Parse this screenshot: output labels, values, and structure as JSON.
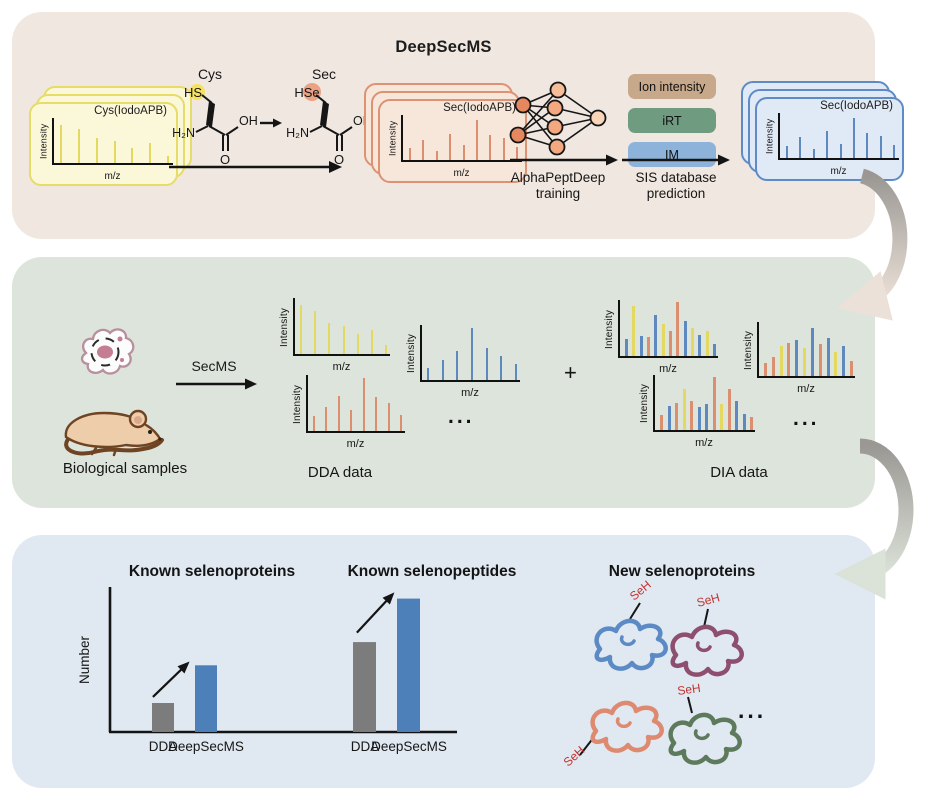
{
  "labels": {
    "intensity": "Intensity",
    "mz": "m/z",
    "seh": "SeH",
    "ellipsis": "...",
    "plus": "+"
  },
  "colors": {
    "bars": {
      "y": "#e3d960",
      "s": "#dc8f6e",
      "b": "#5d88c0"
    },
    "panel1": "#efe7e0",
    "panel2": "#dde4db",
    "panel3": "#e0e8f1",
    "pill_ion": "#c7a88b",
    "pill_irt": "#6f9c81",
    "pill_im": "#8db3da",
    "dda_bar": "#7c7c7c",
    "deepsecms_bar": "#4d80b8",
    "seh_red": "#bf3430"
  },
  "top_panel": {
    "title": "DeepSecMS",
    "card_yellow": {
      "title": "Cys(IodoAPB)",
      "w": 2,
      "bars": [
        [
          "y",
          0.85
        ],
        [
          "y",
          0.76
        ],
        [
          "y",
          0.55
        ],
        [
          "y",
          0.5
        ],
        [
          "y",
          0.34
        ],
        [
          "y",
          0.44
        ],
        [
          "y",
          0.16
        ]
      ]
    },
    "card_salmon": {
      "title": "Sec(IodoAPB)",
      "w": 2,
      "bars": [
        [
          "s",
          0.26
        ],
        [
          "s",
          0.44
        ],
        [
          "s",
          0.2
        ],
        [
          "s",
          0.58
        ],
        [
          "s",
          0.34
        ],
        [
          "s",
          0.9
        ],
        [
          "s",
          0.56
        ],
        [
          "s",
          0.5
        ],
        [
          "s",
          0.3
        ]
      ]
    },
    "card_blue": {
      "title": "Sec(IodoAPB)",
      "w": 2,
      "bars": [
        [
          "b",
          0.26
        ],
        [
          "b",
          0.46
        ],
        [
          "b",
          0.2
        ],
        [
          "b",
          0.6
        ],
        [
          "b",
          0.32
        ],
        [
          "b",
          0.9
        ],
        [
          "b",
          0.56
        ],
        [
          "b",
          0.5
        ],
        [
          "b",
          0.3
        ]
      ]
    },
    "chem": {
      "cys_name": "Cys",
      "sec_name": "Sec",
      "cys_group": "HS",
      "sec_group": "HSe",
      "amine": "H₂N",
      "hydroxyl": "OH",
      "oxygen": "O"
    },
    "nn_label_line1": "AlphaPeptDeep",
    "nn_label_line2": "training",
    "pills": [
      {
        "label": "Ion intensity"
      },
      {
        "label": "iRT"
      },
      {
        "label": "IM"
      }
    ],
    "sis_label_line1": "SIS database",
    "sis_label_line2": "prediction"
  },
  "middle_panel": {
    "samples_label": "Biological samples",
    "arrow_label": "SecMS",
    "dda_label": "DDA data",
    "dia_label": "DIA data",
    "spectra": {
      "dda_yellow": {
        "w": 2,
        "bars": [
          [
            "y",
            0.88
          ],
          [
            "y",
            0.76
          ],
          [
            "y",
            0.56
          ],
          [
            "y",
            0.5
          ],
          [
            "y",
            0.35
          ],
          [
            "y",
            0.42
          ],
          [
            "y",
            0.16
          ]
        ]
      },
      "dda_salmon": {
        "w": 2,
        "bars": [
          [
            "s",
            0.26
          ],
          [
            "s",
            0.42
          ],
          [
            "s",
            0.62
          ],
          [
            "s",
            0.38
          ],
          [
            "s",
            0.94
          ],
          [
            "s",
            0.6
          ],
          [
            "s",
            0.5
          ],
          [
            "s",
            0.28
          ]
        ]
      },
      "dda_blue": {
        "w": 2,
        "bars": [
          [
            "b",
            0.22
          ],
          [
            "b",
            0.36
          ],
          [
            "b",
            0.52
          ],
          [
            "b",
            0.94
          ],
          [
            "b",
            0.58
          ],
          [
            "b",
            0.44
          ],
          [
            "b",
            0.3
          ]
        ]
      },
      "dia_1": {
        "w": 3,
        "bars": [
          [
            "b",
            0.3
          ],
          [
            "y",
            0.9
          ],
          [
            "b",
            0.36
          ],
          [
            "s",
            0.34
          ],
          [
            "b",
            0.74
          ],
          [
            "y",
            0.58
          ],
          [
            "s",
            0.44
          ],
          [
            "s",
            0.96
          ],
          [
            "b",
            0.62
          ],
          [
            "y",
            0.5
          ],
          [
            "b",
            0.38
          ],
          [
            "y",
            0.44
          ],
          [
            "b",
            0.22
          ]
        ]
      },
      "dia_2": {
        "w": 3,
        "bars": [
          [
            "s",
            0.28
          ],
          [
            "b",
            0.44
          ],
          [
            "s",
            0.5
          ],
          [
            "y",
            0.74
          ],
          [
            "s",
            0.52
          ],
          [
            "b",
            0.42
          ],
          [
            "b",
            0.48
          ],
          [
            "s",
            0.96
          ],
          [
            "y",
            0.48
          ],
          [
            "s",
            0.74
          ],
          [
            "b",
            0.52
          ],
          [
            "b",
            0.3
          ],
          [
            "s",
            0.24
          ]
        ]
      },
      "dia_3": {
        "w": 3,
        "bars": [
          [
            "s",
            0.24
          ],
          [
            "s",
            0.36
          ],
          [
            "y",
            0.56
          ],
          [
            "s",
            0.62
          ],
          [
            "b",
            0.66
          ],
          [
            "y",
            0.52
          ],
          [
            "b",
            0.88
          ],
          [
            "s",
            0.6
          ],
          [
            "b",
            0.7
          ],
          [
            "y",
            0.44
          ],
          [
            "b",
            0.56
          ],
          [
            "s",
            0.28
          ]
        ]
      }
    }
  },
  "bottom_panel": {
    "title_known_proteins": "Known selenoproteins",
    "title_known_peptides": "Known selenopeptides",
    "title_new_proteins": "New selenoproteins",
    "ylabel": "Number",
    "chart": {
      "type": "bar",
      "groups": [
        {
          "labels": [
            "DDA",
            "DeepSecMS"
          ],
          "heights": [
            0.2,
            0.46
          ]
        },
        {
          "labels": [
            "DDA",
            "DeepSecMS"
          ],
          "heights": [
            0.62,
            0.92
          ]
        }
      ],
      "bar_colors": {
        "dda": "#7c7c7c",
        "deepsecms": "#4d80b8"
      }
    },
    "proteins": [
      {
        "color": "#5b8ac5"
      },
      {
        "color": "#8d4f6d"
      },
      {
        "color": "#dd8a70"
      },
      {
        "color": "#5d7a5c"
      }
    ]
  }
}
